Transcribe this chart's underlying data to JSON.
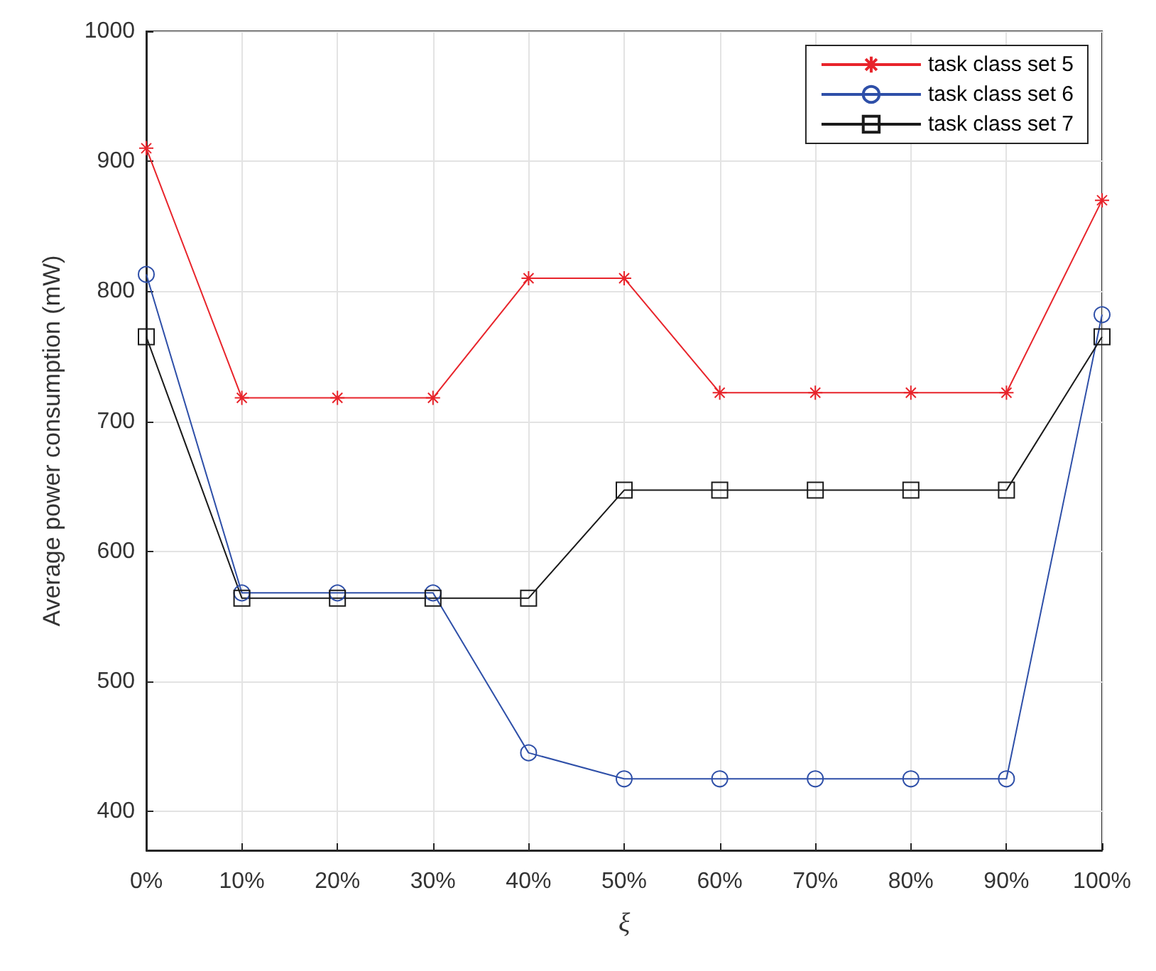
{
  "chart_data": {
    "type": "line",
    "xlabel": "ξ",
    "ylabel": "Average power consumption (mW)",
    "categories": [
      "0%",
      "10%",
      "20%",
      "30%",
      "40%",
      "50%",
      "60%",
      "70%",
      "80%",
      "90%",
      "100%"
    ],
    "series": [
      {
        "name": "task class set 5",
        "color": "#e8242b",
        "marker": "cross",
        "values": [
          910,
          718,
          718,
          718,
          810,
          810,
          722,
          722,
          722,
          722,
          870
        ]
      },
      {
        "name": "task class set 6",
        "color": "#2e4fa8",
        "marker": "circle",
        "values": [
          813,
          568,
          568,
          568,
          445,
          425,
          425,
          425,
          425,
          425,
          782
        ]
      },
      {
        "name": "task class set 7",
        "color": "#1a1a1a",
        "marker": "square",
        "values": [
          765,
          564,
          564,
          564,
          564,
          647,
          647,
          647,
          647,
          647,
          765
        ]
      }
    ],
    "ylim": [
      370,
      1000
    ],
    "yticks": [
      400,
      500,
      600,
      700,
      800,
      900,
      1000
    ],
    "grid": true,
    "legend": "top right",
    "line_style": "solid"
  }
}
